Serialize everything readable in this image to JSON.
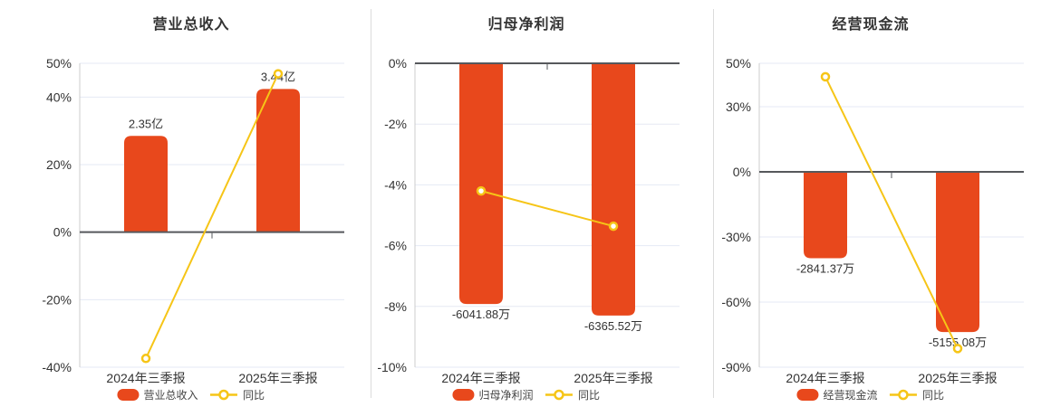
{
  "colors": {
    "bar": "#E8481C",
    "line": "#F6C517",
    "marker_fill": "#FFFFFF",
    "grid": "#E5E9F4",
    "zero_line": "#56585C",
    "axis_line": "#CCCCCC",
    "divider": "#DCDCDC",
    "title_text": "#333333",
    "tick_text": "#333333",
    "value_text": "#333333",
    "legend_text": "#444444",
    "background": "#FFFFFF"
  },
  "chart_data": [
    {
      "type": "bar+line",
      "title": "营业总收入",
      "categories": [
        "2024年三季报",
        "2025年三季报"
      ],
      "bar_series": {
        "name": "营业总收入",
        "unit": "亿",
        "values": [
          2.35,
          3.44
        ],
        "value_labels": [
          "2.35亿",
          "3.44亿"
        ],
        "display_pct": [
          28.5,
          42.4
        ]
      },
      "line_series": {
        "name": "同比",
        "values_pct": [
          -37.4,
          46.9
        ]
      },
      "y_ticks_pct": [
        50,
        40,
        20,
        0,
        -20,
        -40
      ],
      "ylim_pct": [
        -40,
        50
      ],
      "grid": true,
      "legend_position": "bottom"
    },
    {
      "type": "bar+line",
      "title": "归母净利润",
      "categories": [
        "2024年三季报",
        "2025年三季报"
      ],
      "bar_series": {
        "name": "归母净利润",
        "unit": "万",
        "values": [
          -6041.88,
          -6365.52
        ],
        "value_labels": [
          "-6041.88万",
          "-6365.52万"
        ],
        "display_pct": [
          -7.92,
          -8.3
        ]
      },
      "line_series": {
        "name": "同比",
        "values_pct": [
          -4.2,
          -5.36
        ]
      },
      "y_ticks_pct": [
        0,
        -2,
        -4,
        -6,
        -8,
        -10
      ],
      "ylim_pct": [
        -10,
        0
      ],
      "grid": true,
      "legend_position": "bottom"
    },
    {
      "type": "bar+line",
      "title": "经营现金流",
      "categories": [
        "2024年三季报",
        "2025年三季报"
      ],
      "bar_series": {
        "name": "经营现金流",
        "unit": "万",
        "values": [
          -2841.37,
          -5155.08
        ],
        "value_labels": [
          "-2841.37万",
          "-5155.08万"
        ],
        "display_pct": [
          -39.8,
          -73.8
        ]
      },
      "line_series": {
        "name": "同比",
        "values_pct": [
          43.8,
          -81.4
        ]
      },
      "y_ticks_pct": [
        50,
        30,
        0,
        -30,
        -60,
        -90
      ],
      "ylim_pct": [
        -90,
        50
      ],
      "grid": true,
      "legend_position": "bottom"
    }
  ]
}
